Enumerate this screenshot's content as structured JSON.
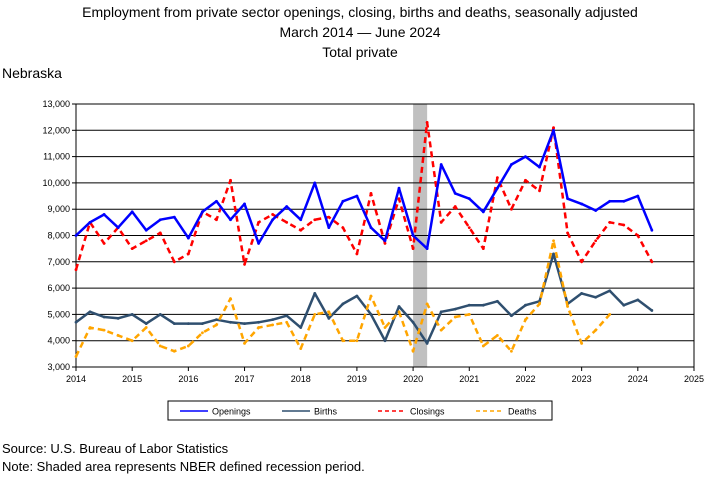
{
  "title": {
    "line1": "Employment from private sector openings, closing, births and deaths, seasonally adjusted",
    "line2": "March 2014  — June 2024",
    "line3": "Total private"
  },
  "state_label": "Nebraska",
  "footnotes": {
    "source": "Source: U.S. Bureau of Labor Statistics",
    "note": "Note: Shaded area represents NBER defined recession period."
  },
  "chart_data": {
    "type": "line",
    "title": "Employment from private sector openings, closing, births and deaths, seasonally adjusted",
    "subtitle": "March 2014 — June 2024 — Total private",
    "xlabel": "",
    "ylabel": "",
    "xlim": [
      2014,
      2025
    ],
    "ylim": [
      3000,
      13000
    ],
    "x_ticks": [
      "2014",
      "2015",
      "2016",
      "2017",
      "2018",
      "2019",
      "2020",
      "2021",
      "2022",
      "2023",
      "2024",
      "2025"
    ],
    "y_ticks": [
      "3,000",
      "4,000",
      "5,000",
      "6,000",
      "7,000",
      "8,000",
      "9,000",
      "10,000",
      "11,000",
      "12,000",
      "13,000"
    ],
    "grid": true,
    "legend_position": "bottom",
    "recession": [
      2020.0,
      2020.25
    ],
    "x": [
      2014.0,
      2014.25,
      2014.5,
      2014.75,
      2015.0,
      2015.25,
      2015.5,
      2015.75,
      2016.0,
      2016.25,
      2016.5,
      2016.75,
      2017.0,
      2017.25,
      2017.5,
      2017.75,
      2018.0,
      2018.25,
      2018.5,
      2018.75,
      2019.0,
      2019.25,
      2019.5,
      2019.75,
      2020.0,
      2020.25,
      2020.5,
      2020.75,
      2021.0,
      2021.25,
      2021.5,
      2021.75,
      2022.0,
      2022.25,
      2022.5,
      2022.75,
      2023.0,
      2023.25,
      2023.5,
      2023.75,
      2024.0,
      2024.25
    ],
    "series": [
      {
        "name": "Openings",
        "color": "#0000ff",
        "dash": "solid",
        "width": 2.5,
        "values": [
          8000,
          8500,
          8800,
          8300,
          8900,
          8200,
          8600,
          8700,
          7900,
          8900,
          9300,
          8600,
          9200,
          7700,
          8600,
          9100,
          8600,
          10000,
          8300,
          9300,
          9500,
          8300,
          7800,
          9800,
          8000,
          7500,
          10700,
          9600,
          9400,
          8900,
          9800,
          10700,
          11000,
          10600,
          12000,
          9400,
          9200,
          8950,
          9300,
          9300,
          9500,
          8200
        ]
      },
      {
        "name": "Births",
        "color": "#2f4f6f",
        "dash": "solid",
        "width": 2.5,
        "values": [
          4700,
          5100,
          4900,
          4850,
          5000,
          4650,
          5000,
          4650,
          4650,
          4650,
          4800,
          4700,
          4650,
          4700,
          4800,
          4950,
          4500,
          5800,
          4850,
          5400,
          5700,
          5000,
          4000,
          5300,
          4700,
          3900,
          5100,
          5200,
          5350,
          5350,
          5500,
          4950,
          5350,
          5500,
          7300,
          5400,
          5800,
          5650,
          5900,
          5350,
          5550,
          5150
        ]
      },
      {
        "name": "Closings",
        "color": "#ff0000",
        "dash": "6,4",
        "width": 2.5,
        "values": [
          6700,
          8500,
          7700,
          8300,
          7500,
          7800,
          8100,
          7000,
          7300,
          8900,
          8600,
          10100,
          6900,
          8500,
          8800,
          8500,
          8200,
          8600,
          8700,
          8300,
          7300,
          9600,
          7700,
          9400,
          7500,
          12300,
          8500,
          9100,
          8300,
          7500,
          10200,
          9000,
          10100,
          9700,
          12100,
          8100,
          7000,
          7800,
          8500,
          8400,
          8000,
          7000
        ]
      },
      {
        "name": "Deaths",
        "color": "#ffa500",
        "dash": "6,4",
        "width": 2.5,
        "values": [
          3400,
          4500,
          4400,
          4200,
          4000,
          4500,
          3800,
          3600,
          3800,
          4300,
          4600,
          5600,
          3900,
          4500,
          4600,
          4700,
          3700,
          5000,
          5100,
          4000,
          4000,
          5700,
          4500,
          5100,
          3600,
          5400,
          4400,
          4900,
          5000,
          3800,
          4200,
          3600,
          4800,
          5400,
          7800,
          5300,
          3900,
          4400,
          5000,
          null,
          null,
          null
        ]
      }
    ]
  }
}
